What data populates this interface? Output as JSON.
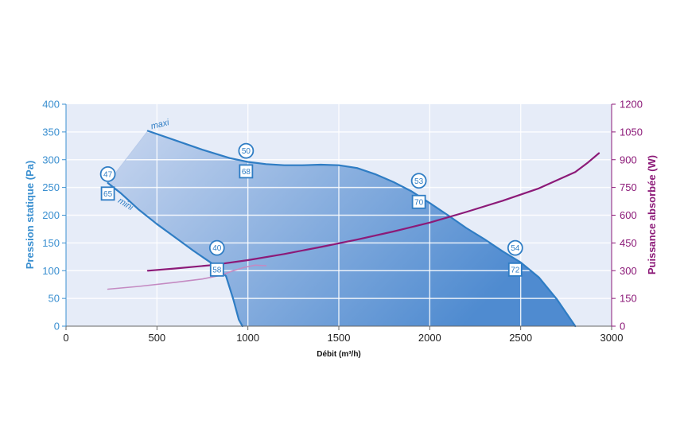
{
  "chart_data": {
    "type": "line",
    "xlabel": "Débit (m³/h)",
    "ylabel_left": "Pression statique (Pa)",
    "ylabel_right": "Puissance absorbée (W)",
    "xlim": [
      0,
      3000
    ],
    "ylim_left": [
      0,
      400
    ],
    "ylim_right": [
      0,
      1200
    ],
    "x_ticks": [
      "0",
      "500",
      "1000",
      "1500",
      "2000",
      "2500",
      "3000"
    ],
    "y_ticks_left": [
      "0",
      "50",
      "100",
      "150",
      "200",
      "250",
      "300",
      "350",
      "400"
    ],
    "y_ticks_right": [
      "0",
      "150",
      "300",
      "450",
      "600",
      "750",
      "900",
      "1050",
      "1200"
    ],
    "grid": true,
    "series": [
      {
        "name": "maxi",
        "axis": "left",
        "color": "#2f7dc4",
        "points": [
          [
            450,
            352
          ],
          [
            600,
            335
          ],
          [
            750,
            318
          ],
          [
            900,
            303
          ],
          [
            1000,
            296
          ],
          [
            1100,
            292
          ],
          [
            1200,
            290
          ],
          [
            1300,
            290
          ],
          [
            1400,
            291
          ],
          [
            1500,
            290
          ],
          [
            1600,
            285
          ],
          [
            1700,
            274
          ],
          [
            1800,
            260
          ],
          [
            1900,
            243
          ],
          [
            2000,
            222
          ],
          [
            2100,
            200
          ],
          [
            2200,
            177
          ],
          [
            2300,
            157
          ],
          [
            2400,
            135
          ],
          [
            2500,
            115
          ],
          [
            2600,
            88
          ],
          [
            2700,
            48
          ],
          [
            2800,
            0
          ]
        ]
      },
      {
        "name": "mini",
        "axis": "left",
        "color": "#2f7dc4",
        "points": [
          [
            230,
            258
          ],
          [
            300,
            240
          ],
          [
            400,
            210
          ],
          [
            500,
            184
          ],
          [
            600,
            160
          ],
          [
            700,
            136
          ],
          [
            780,
            118
          ],
          [
            830,
            107
          ],
          [
            880,
            90
          ],
          [
            920,
            48
          ],
          [
            950,
            12
          ],
          [
            970,
            0
          ]
        ]
      },
      {
        "name": "",
        "axis": "right",
        "color": "#8c1a78",
        "points": [
          [
            450,
            300
          ],
          [
            600,
            312
          ],
          [
            800,
            330
          ],
          [
            1000,
            357
          ],
          [
            1200,
            390
          ],
          [
            1400,
            428
          ],
          [
            1600,
            468
          ],
          [
            1800,
            512
          ],
          [
            2000,
            560
          ],
          [
            2200,
            617
          ],
          [
            2400,
            678
          ],
          [
            2600,
            745
          ],
          [
            2800,
            833
          ],
          [
            2870,
            885
          ],
          [
            2930,
            935
          ]
        ]
      },
      {
        "name": "",
        "axis": "right",
        "color": "#c48ac2",
        "points": [
          [
            230,
            200
          ],
          [
            400,
            215
          ],
          [
            600,
            237
          ],
          [
            750,
            255
          ],
          [
            850,
            275
          ],
          [
            920,
            300
          ],
          [
            980,
            318
          ],
          [
            1040,
            330
          ],
          [
            1100,
            327
          ]
        ]
      }
    ],
    "curve_labels": [
      {
        "text": "maxi",
        "x": 520,
        "y": 359
      },
      {
        "text": "mini",
        "x": 320,
        "y": 216
      }
    ],
    "circle_markers": [
      {
        "label": "47",
        "x": 230,
        "y": 274
      },
      {
        "label": "50",
        "x": 990,
        "y": 316
      },
      {
        "label": "53",
        "x": 1940,
        "y": 262
      },
      {
        "label": "40",
        "x": 830,
        "y": 141
      },
      {
        "label": "54",
        "x": 2470,
        "y": 141
      }
    ],
    "square_markers": [
      {
        "label": "65",
        "x": 230,
        "y": 239
      },
      {
        "label": "68",
        "x": 990,
        "y": 279
      },
      {
        "label": "70",
        "x": 1940,
        "y": 224
      },
      {
        "label": "58",
        "x": 830,
        "y": 102
      },
      {
        "label": "72",
        "x": 2470,
        "y": 102
      }
    ]
  },
  "colors": {
    "plot_background": "#e6ecf8",
    "grid": "#ffffff",
    "fill_light": "#c6d5ee",
    "fill_dark": "#5b93d3",
    "pressure_axis": "#3a8fd0",
    "power_axis": "#8c1a78"
  }
}
